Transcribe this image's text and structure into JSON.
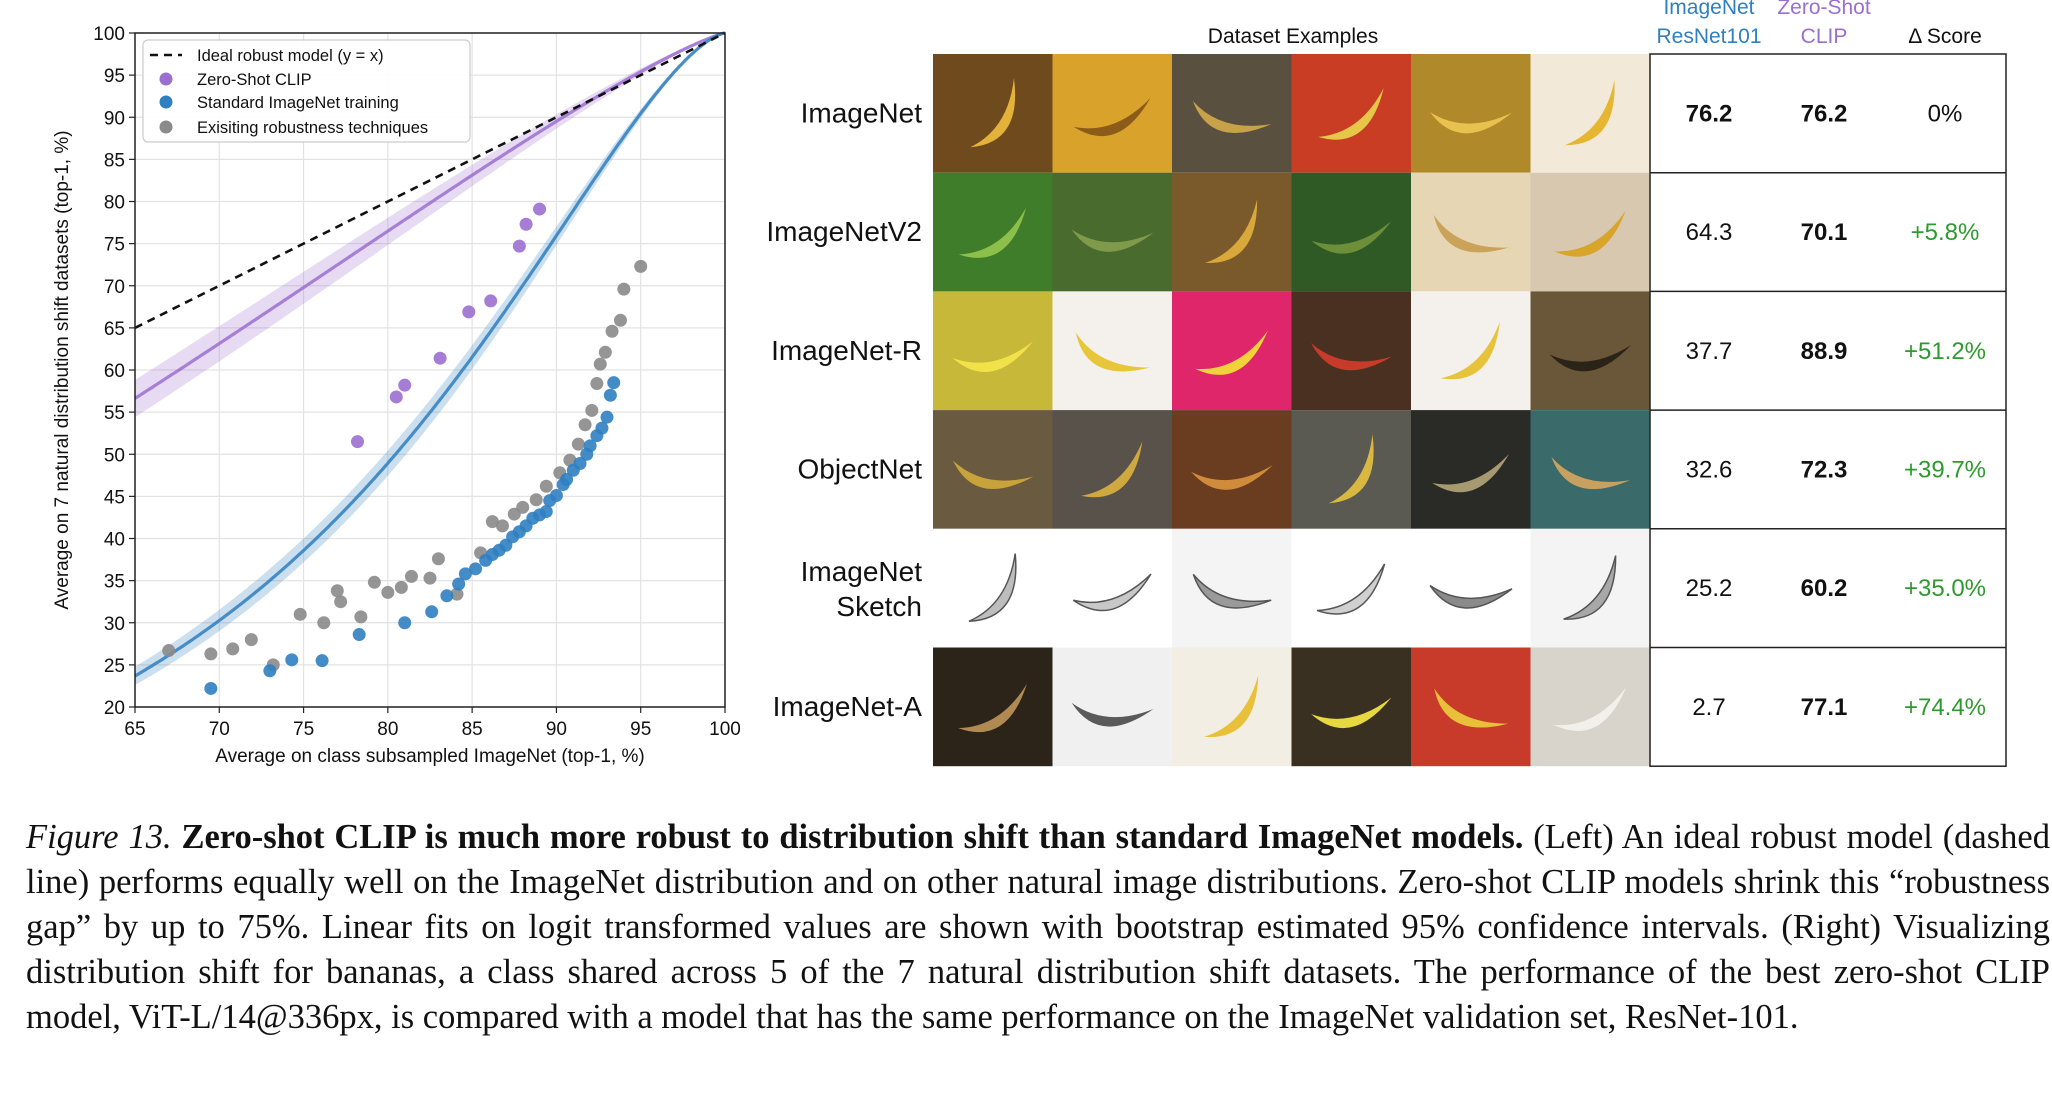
{
  "chart_data": {
    "type": "scatter",
    "xlabel": "Average on class subsampled ImageNet (top-1, %)",
    "ylabel": "Average on 7 natural distribution shift datasets (top-1, %)",
    "xlim": [
      65,
      100
    ],
    "ylim": [
      20,
      100
    ],
    "xticks": [
      65,
      70,
      75,
      80,
      85,
      90,
      95,
      100
    ],
    "yticks": [
      20,
      25,
      30,
      35,
      40,
      45,
      50,
      55,
      60,
      65,
      70,
      75,
      80,
      85,
      90,
      95,
      100
    ],
    "grid": true,
    "legend_position": "top-left",
    "legend": [
      "Ideal robust model (y = x)",
      "Zero-Shot CLIP",
      "Standard ImageNet training",
      "Exisiting robustness techniques"
    ],
    "colors": {
      "ideal": "#111111",
      "clip": "#9b6fd0",
      "imagenet": "#2f7fc1",
      "robust": "#8a8a8a"
    },
    "series": [
      {
        "name": "Zero-Shot CLIP",
        "points": [
          [
            78.2,
            51.5
          ],
          [
            80.5,
            56.8
          ],
          [
            81.0,
            58.2
          ],
          [
            83.1,
            61.4
          ],
          [
            84.8,
            66.9
          ],
          [
            86.1,
            68.2
          ],
          [
            87.8,
            74.7
          ],
          [
            88.2,
            77.3
          ],
          [
            89.0,
            79.1
          ]
        ]
      },
      {
        "name": "Standard ImageNet training",
        "points": [
          [
            69.5,
            22.2
          ],
          [
            73.0,
            24.3
          ],
          [
            74.3,
            25.6
          ],
          [
            76.1,
            25.5
          ],
          [
            78.3,
            28.6
          ],
          [
            81.0,
            30.0
          ],
          [
            82.6,
            31.3
          ],
          [
            83.5,
            33.2
          ],
          [
            84.2,
            34.6
          ],
          [
            84.6,
            35.8
          ],
          [
            85.2,
            36.4
          ],
          [
            85.8,
            37.4
          ],
          [
            86.2,
            38.1
          ],
          [
            86.6,
            38.6
          ],
          [
            87.0,
            39.2
          ],
          [
            87.4,
            40.2
          ],
          [
            87.8,
            40.8
          ],
          [
            88.2,
            41.5
          ],
          [
            88.6,
            42.4
          ],
          [
            89.0,
            42.8
          ],
          [
            89.4,
            43.2
          ],
          [
            89.6,
            44.5
          ],
          [
            90.0,
            45.1
          ],
          [
            90.4,
            46.4
          ],
          [
            90.6,
            47.0
          ],
          [
            91.0,
            48.1
          ],
          [
            91.4,
            48.9
          ],
          [
            91.8,
            50.0
          ],
          [
            92.0,
            51.0
          ],
          [
            92.4,
            52.2
          ],
          [
            92.7,
            53.1
          ],
          [
            93.0,
            54.4
          ],
          [
            93.2,
            57.0
          ],
          [
            93.4,
            58.5
          ]
        ]
      },
      {
        "name": "Exisiting robustness techniques",
        "points": [
          [
            67.0,
            26.7
          ],
          [
            69.5,
            26.3
          ],
          [
            70.8,
            26.9
          ],
          [
            71.9,
            28.0
          ],
          [
            73.2,
            25.0
          ],
          [
            74.8,
            31.0
          ],
          [
            76.2,
            30.0
          ],
          [
            77.0,
            33.8
          ],
          [
            77.2,
            32.5
          ],
          [
            78.4,
            30.7
          ],
          [
            79.2,
            34.8
          ],
          [
            80.0,
            33.6
          ],
          [
            80.8,
            34.2
          ],
          [
            81.4,
            35.5
          ],
          [
            82.5,
            35.3
          ],
          [
            83.0,
            37.6
          ],
          [
            84.1,
            33.4
          ],
          [
            85.5,
            38.3
          ],
          [
            86.2,
            42.0
          ],
          [
            86.8,
            41.5
          ],
          [
            87.5,
            42.9
          ],
          [
            88.0,
            43.7
          ],
          [
            88.8,
            44.6
          ],
          [
            89.4,
            46.2
          ],
          [
            90.2,
            47.8
          ],
          [
            90.8,
            49.3
          ],
          [
            91.3,
            51.2
          ],
          [
            91.7,
            53.5
          ],
          [
            92.1,
            55.2
          ],
          [
            92.4,
            58.4
          ],
          [
            92.6,
            60.7
          ],
          [
            92.9,
            62.1
          ],
          [
            93.3,
            64.6
          ],
          [
            93.8,
            65.9
          ],
          [
            94.0,
            69.6
          ],
          [
            95.0,
            72.3
          ]
        ]
      }
    ]
  },
  "panel": {
    "dataset_examples_header": "Dataset Examples",
    "col1_header": [
      "ImageNet",
      "ResNet101"
    ],
    "col2_header": [
      "Zero-Shot",
      "CLIP"
    ],
    "col3_header": "Δ Score",
    "header_colors": {
      "resnet": "#2f7fc1",
      "clip": "#9b6fd0",
      "delta_positive": "#2e9a2e"
    },
    "rows": [
      {
        "name": [
          "ImageNet"
        ],
        "resnet": "76.2",
        "clip": "76.2",
        "delta": "0%"
      },
      {
        "name": [
          "ImageNetV2"
        ],
        "resnet": "64.3",
        "clip": "70.1",
        "delta": "+5.8%"
      },
      {
        "name": [
          "ImageNet-R"
        ],
        "resnet": "37.7",
        "clip": "88.9",
        "delta": "+51.2%"
      },
      {
        "name": [
          "ObjectNet"
        ],
        "resnet": "32.6",
        "clip": "72.3",
        "delta": "+39.7%"
      },
      {
        "name": [
          "ImageNet",
          "Sketch"
        ],
        "resnet": "25.2",
        "clip": "60.2",
        "delta": "+35.0%"
      },
      {
        "name": [
          "ImageNet-A"
        ],
        "resnet": "2.7",
        "clip": "77.1",
        "delta": "+74.4%"
      }
    ]
  },
  "caption": {
    "label": "Figure 13.",
    "title": "Zero-shot CLIP is much more robust to distribution shift than standard ImageNet models.",
    "text": "(Left) An ideal robust model (dashed line) performs equally well on the ImageNet distribution and on other natural image distributions. Zero-shot CLIP models shrink this “robustness gap” by up to 75%. Linear fits on logit transformed values are shown with bootstrap estimated 95% confidence intervals. (Right) Visualizing distribution shift for bananas, a class shared across 5 of the 7 natural distribution shift datasets. The performance of the best zero-shot CLIP model, ViT-L/14@336px, is compared with a model that has the same performance on the ImageNet validation set, ResNet-101."
  }
}
